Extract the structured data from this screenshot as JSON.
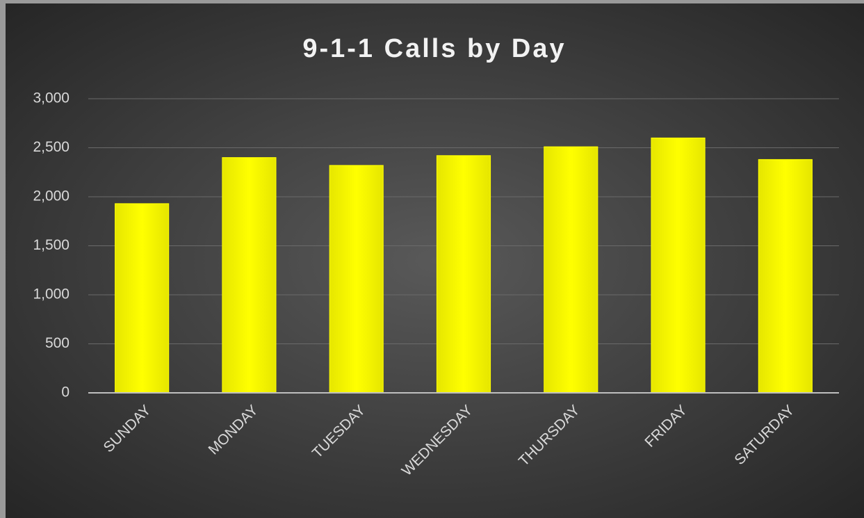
{
  "chart_data": {
    "type": "bar",
    "title": "9-1-1 Calls by Day",
    "categories": [
      "SUNDAY",
      "MONDAY",
      "TUESDAY",
      "WEDNESDAY",
      "THURSDAY",
      "FRIDAY",
      "SATURDAY"
    ],
    "values": [
      1930,
      2400,
      2320,
      2420,
      2510,
      2600,
      2380
    ],
    "color": "#ffff00",
    "ylim": [
      0,
      3000
    ],
    "yticks": [
      0,
      500,
      {
        "value": 1000,
        "label": "1,000"
      },
      {
        "value": 1500,
        "label": "1,500"
      },
      {
        "value": 2000,
        "label": "2,000"
      },
      {
        "value": 2500,
        "label": "2,500"
      },
      {
        "value": 3000,
        "label": "3,000"
      }
    ],
    "grid": true
  }
}
